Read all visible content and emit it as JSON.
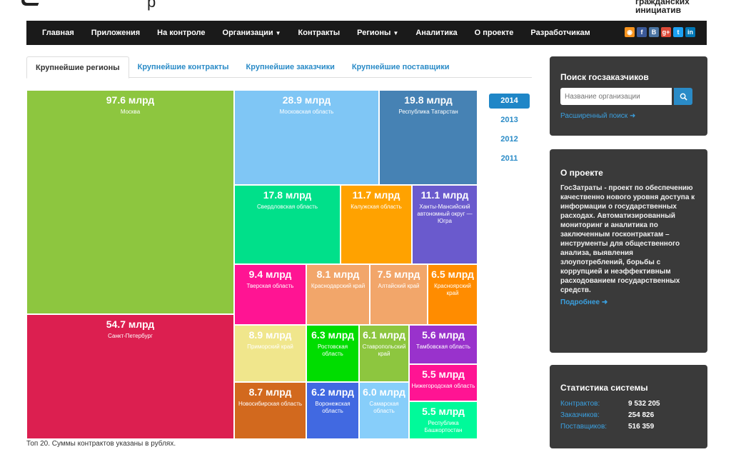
{
  "brand": {
    "org_name_line1": "гражданских",
    "org_name_line2": "инициатив",
    "partial_letter": "р"
  },
  "nav": {
    "items": [
      "Главная",
      "Приложения",
      "На контроле",
      "Организации",
      "Контракты",
      "Регионы",
      "Аналитика",
      "О проекте",
      "Разработчикам"
    ],
    "social": [
      "rss-icon",
      "facebook-icon",
      "vk-icon",
      "googleplus-icon",
      "twitter-icon",
      "linkedin-icon"
    ]
  },
  "tabs": [
    "Крупнейшие регионы",
    "Крупнейшие контракты",
    "Крупнейшие заказчики",
    "Крупнейшие поставщики"
  ],
  "years": [
    "2014",
    "2013",
    "2012",
    "2011"
  ],
  "treemap": [
    {
      "amount": "97.6 млрд",
      "name": "Москва",
      "color": "#8dc63f"
    },
    {
      "amount": "54.7 млрд",
      "name": "Санкт-Петербург",
      "color": "#dc1f50"
    },
    {
      "amount": "28.9 млрд",
      "name": "Московская область",
      "color": "#7fc6f5"
    },
    {
      "amount": "19.8 млрд",
      "name": "Республика Татарстан",
      "color": "#4682b4"
    },
    {
      "amount": "17.8 млрд",
      "name": "Свердловская область",
      "color": "#00e08a"
    },
    {
      "amount": "11.7 млрд",
      "name": "Калужская область",
      "color": "#ffa200"
    },
    {
      "amount": "11.1 млрд",
      "name": "Ханты-Мансийский автономный округ — Югра",
      "color": "#6a5acd"
    },
    {
      "amount": "9.4 млрд",
      "name": "Тверская область",
      "color": "#ff1493"
    },
    {
      "amount": "8.1 млрд",
      "name": "Краснодарский край",
      "color": "#f2a66a"
    },
    {
      "amount": "7.5 млрд",
      "name": "Алтайский край",
      "color": "#f2a66a"
    },
    {
      "amount": "6.5 млрд",
      "name": "Красноярский край",
      "color": "#ff8c00"
    },
    {
      "amount": "8.9 млрд",
      "name": "Приморский край",
      "color": "#f0e68c"
    },
    {
      "amount": "6.3 млрд",
      "name": "Ростовская область",
      "color": "#00dd00"
    },
    {
      "amount": "6.1 млрд",
      "name": "Ставропольский край",
      "color": "#8dc63f"
    },
    {
      "amount": "5.6 млрд",
      "name": "Тамбовская область",
      "color": "#9932cc"
    },
    {
      "amount": "5.5 млрд",
      "name": "Нижегородская область",
      "color": "#ff1493"
    },
    {
      "amount": "8.7 млрд",
      "name": "Новосибирская область",
      "color": "#d2691e"
    },
    {
      "amount": "6.2 млрд",
      "name": "Воронежская область",
      "color": "#4169e1"
    },
    {
      "amount": "6.0 млрд",
      "name": "Самарская область",
      "color": "#87cefa"
    },
    {
      "amount": "5.5 млрд",
      "name": "Республика Башкортостан",
      "color": "#00fa9a"
    }
  ],
  "footnote": "Топ 20. Суммы контрактов указаны в рублях.",
  "search_panel": {
    "title": "Поиск госзаказчиков",
    "placeholder": "Название организации",
    "advanced": "Расширенный поиск"
  },
  "about_panel": {
    "title": "О проекте",
    "text": "ГосЗатраты - проект по обеспечению качественно нового уровня доступа к информации о государственных расходах. Автоматизированный мониторинг и аналитика по заключенным госконтрактам – инструменты для общественного анализа, выявления злоупотреблений, борьбы с коррупцией и неэффективным расходованием государственных средств.",
    "more": "Подробнее"
  },
  "stats_panel": {
    "title": "Статистика системы",
    "rows": [
      {
        "label": "Контрактов:",
        "value": "9 532 205"
      },
      {
        "label": "Заказчиков:",
        "value": "254 826"
      },
      {
        "label": "Поставщиков:",
        "value": "516 359"
      }
    ]
  }
}
